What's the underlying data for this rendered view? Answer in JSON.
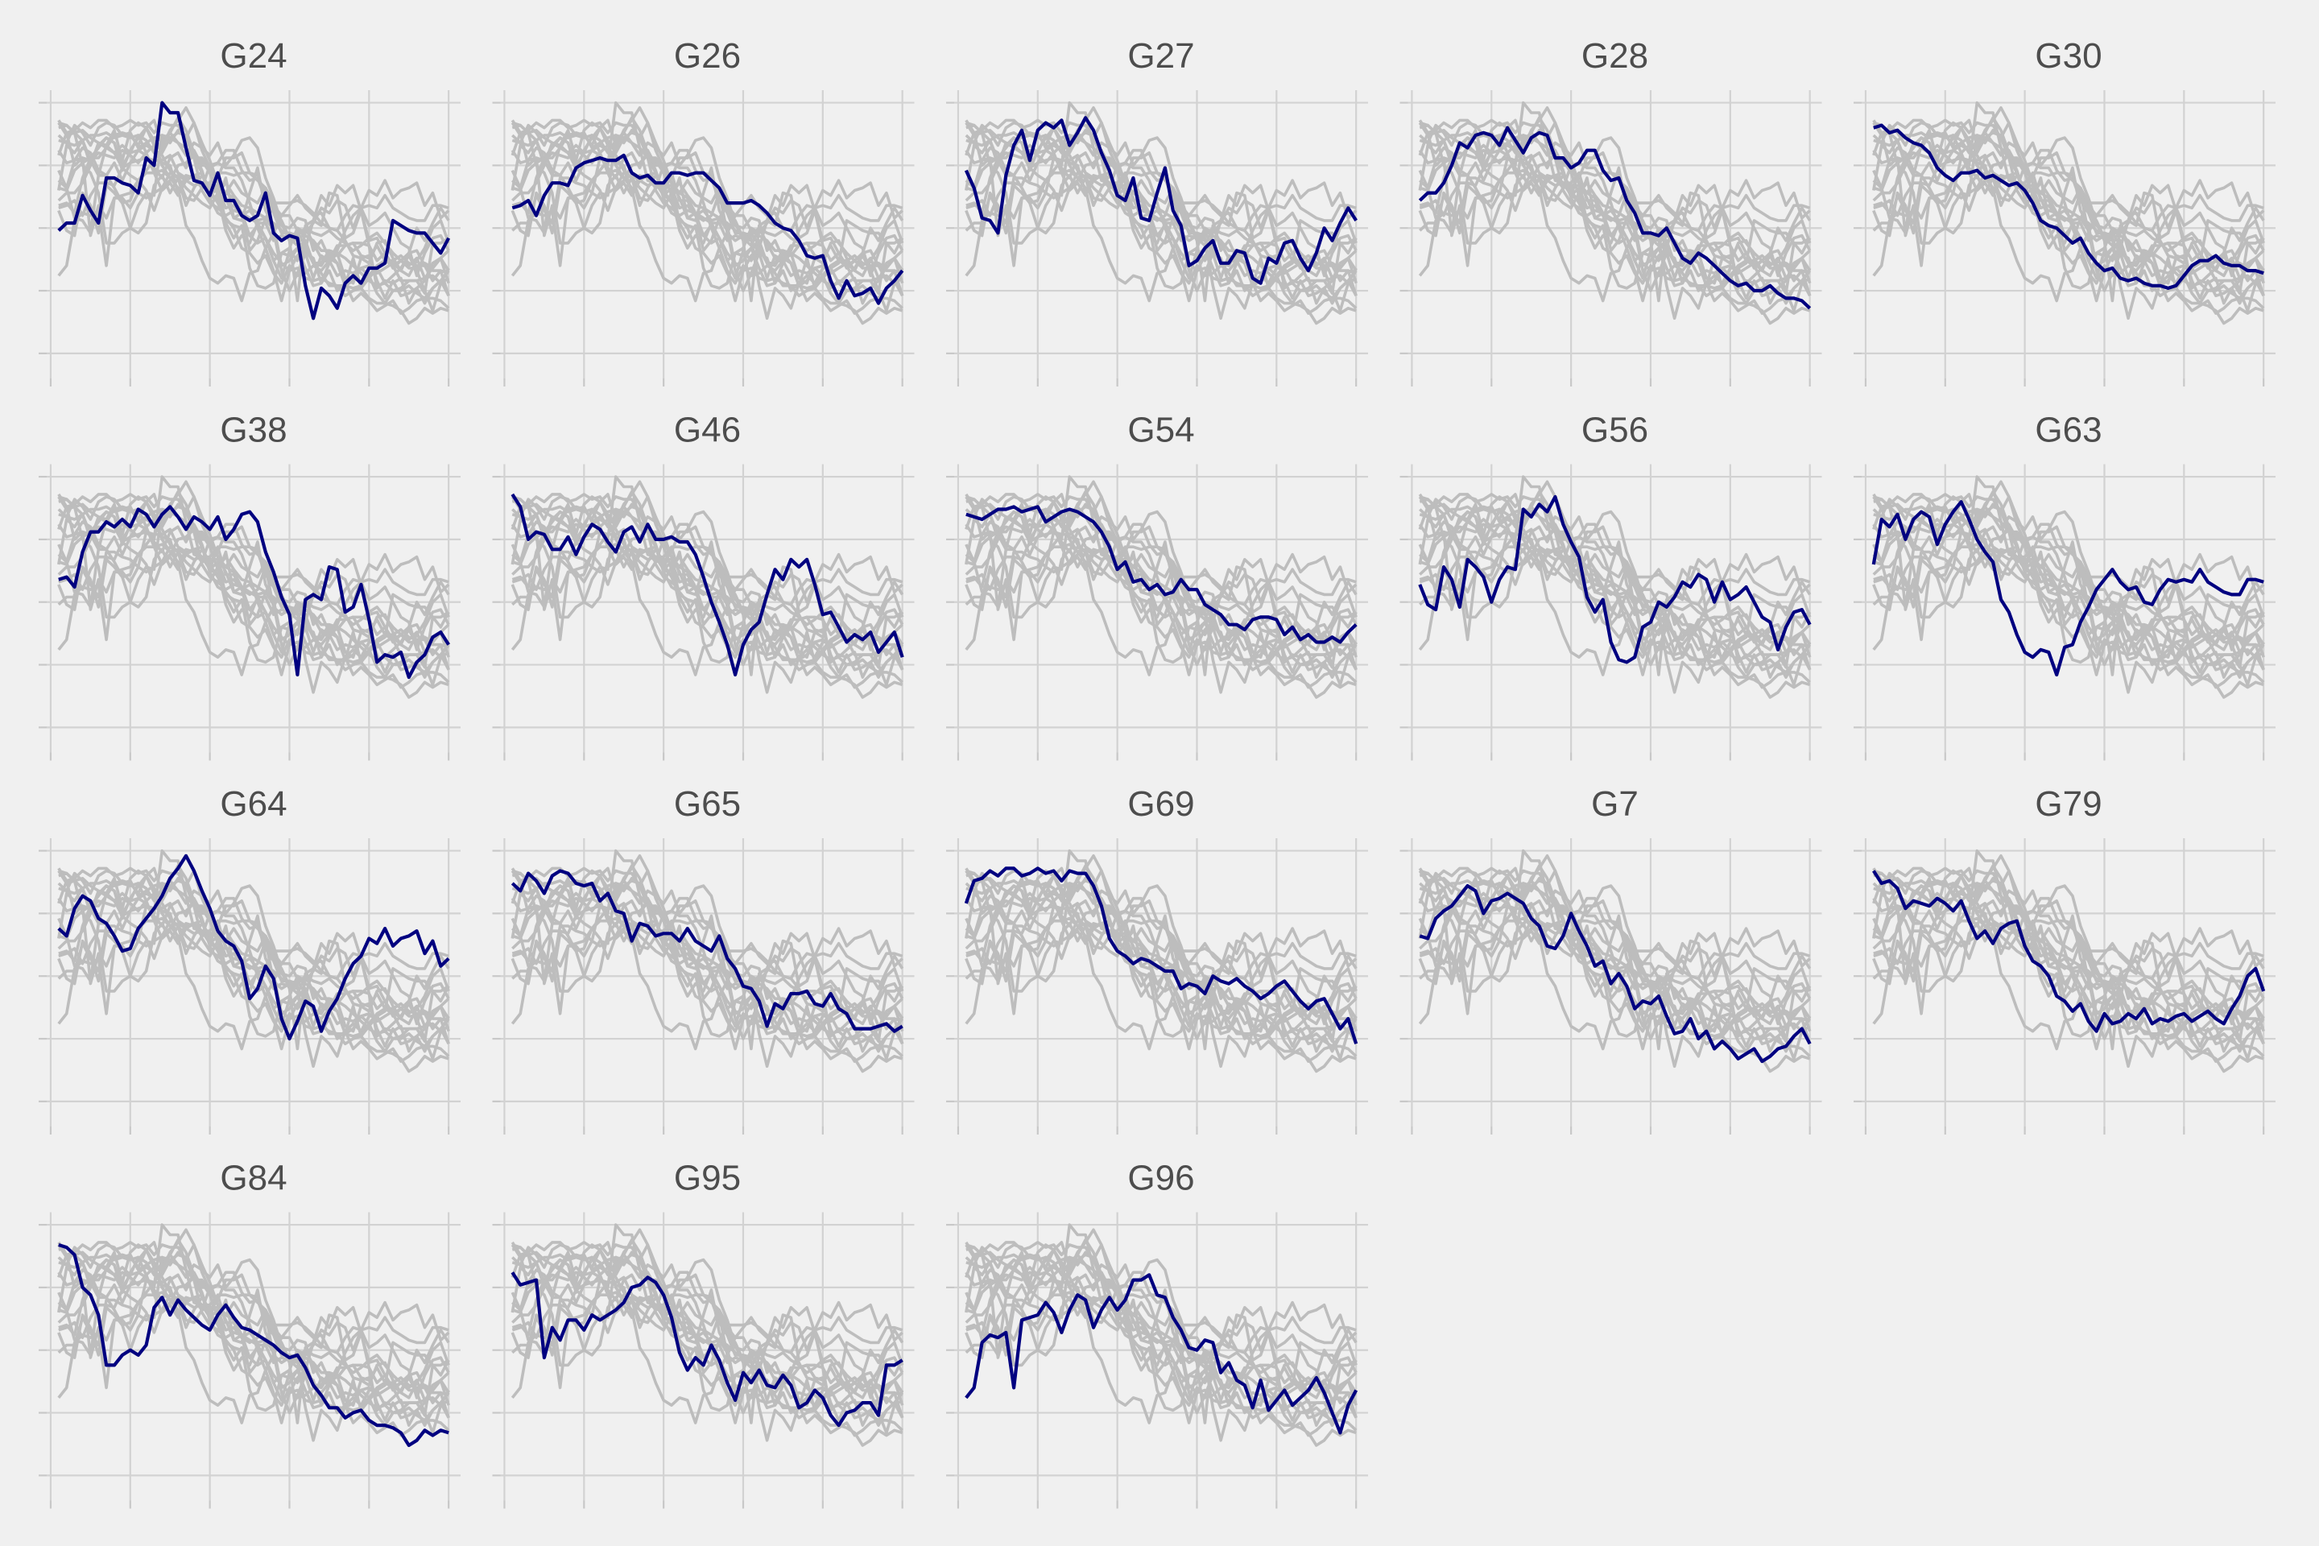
{
  "chart_data": {
    "type": "line",
    "layout": "small-multiples",
    "title": "",
    "xlabel": "",
    "ylabel": "",
    "tick_labels_shown": false,
    "grid": true,
    "x": [
      1,
      2,
      3,
      4,
      5,
      6,
      7,
      8,
      9,
      10,
      11,
      12,
      13,
      14,
      15,
      16,
      17,
      18,
      19,
      20,
      21,
      22,
      23,
      24,
      25,
      26,
      27,
      28,
      29,
      30,
      31,
      32,
      33,
      34,
      35,
      36,
      37,
      38,
      39,
      40,
      41,
      42,
      43,
      44,
      45,
      46,
      47,
      48,
      49,
      50
    ],
    "xlim": [
      -0.5,
      51.5
    ],
    "ylim": [
      -0.1,
      1.05
    ],
    "colors": {
      "highlight": "#000080",
      "background_series": "#bdbdbd",
      "panel_background": "#f0f0f0",
      "grid": "#d2d2d2"
    },
    "panels": [
      {
        "name": "G24",
        "values": [
          0.49,
          0.52,
          0.52,
          0.63,
          0.57,
          0.52,
          0.7,
          0.7,
          0.68,
          0.67,
          0.64,
          0.78,
          0.75,
          1.0,
          0.96,
          0.96,
          0.82,
          0.69,
          0.68,
          0.63,
          0.72,
          0.61,
          0.61,
          0.55,
          0.53,
          0.55,
          0.64,
          0.48,
          0.45,
          0.47,
          0.46,
          0.27,
          0.14,
          0.26,
          0.23,
          0.18,
          0.28,
          0.31,
          0.28,
          0.34,
          0.34,
          0.36,
          0.53,
          0.51,
          0.49,
          0.48,
          0.48,
          0.44,
          0.4,
          0.46
        ]
      },
      {
        "name": "G26",
        "values": [
          0.58,
          0.59,
          0.61,
          0.55,
          0.63,
          0.68,
          0.68,
          0.67,
          0.74,
          0.76,
          0.77,
          0.78,
          0.77,
          0.77,
          0.79,
          0.72,
          0.7,
          0.71,
          0.68,
          0.68,
          0.72,
          0.72,
          0.71,
          0.72,
          0.72,
          0.69,
          0.66,
          0.6,
          0.6,
          0.6,
          0.61,
          0.59,
          0.56,
          0.52,
          0.5,
          0.49,
          0.45,
          0.39,
          0.38,
          0.39,
          0.29,
          0.22,
          0.29,
          0.23,
          0.24,
          0.26,
          0.2,
          0.26,
          0.29,
          0.33
        ]
      },
      {
        "name": "G27",
        "values": [
          0.73,
          0.66,
          0.54,
          0.53,
          0.48,
          0.71,
          0.83,
          0.89,
          0.77,
          0.89,
          0.92,
          0.9,
          0.93,
          0.83,
          0.88,
          0.94,
          0.89,
          0.8,
          0.73,
          0.63,
          0.61,
          0.7,
          0.54,
          0.53,
          0.64,
          0.74,
          0.57,
          0.51,
          0.35,
          0.37,
          0.42,
          0.45,
          0.36,
          0.36,
          0.41,
          0.4,
          0.3,
          0.28,
          0.38,
          0.36,
          0.44,
          0.45,
          0.38,
          0.33,
          0.4,
          0.5,
          0.45,
          0.52,
          0.58,
          0.53
        ]
      },
      {
        "name": "G28",
        "values": [
          0.61,
          0.64,
          0.64,
          0.68,
          0.75,
          0.84,
          0.82,
          0.87,
          0.88,
          0.87,
          0.83,
          0.9,
          0.85,
          0.8,
          0.86,
          0.88,
          0.87,
          0.78,
          0.78,
          0.74,
          0.76,
          0.81,
          0.81,
          0.73,
          0.69,
          0.7,
          0.61,
          0.56,
          0.48,
          0.48,
          0.47,
          0.5,
          0.44,
          0.38,
          0.36,
          0.4,
          0.38,
          0.35,
          0.32,
          0.29,
          0.27,
          0.28,
          0.25,
          0.25,
          0.27,
          0.24,
          0.22,
          0.22,
          0.21,
          0.18
        ]
      },
      {
        "name": "G30",
        "values": [
          0.9,
          0.91,
          0.88,
          0.89,
          0.86,
          0.84,
          0.83,
          0.8,
          0.74,
          0.71,
          0.69,
          0.72,
          0.72,
          0.73,
          0.7,
          0.71,
          0.69,
          0.67,
          0.68,
          0.65,
          0.6,
          0.53,
          0.51,
          0.5,
          0.47,
          0.44,
          0.46,
          0.4,
          0.36,
          0.33,
          0.34,
          0.3,
          0.29,
          0.3,
          0.28,
          0.27,
          0.27,
          0.26,
          0.27,
          0.31,
          0.35,
          0.37,
          0.37,
          0.39,
          0.36,
          0.35,
          0.35,
          0.33,
          0.33,
          0.32
        ]
      },
      {
        "name": "G38",
        "values": [
          0.59,
          0.6,
          0.56,
          0.7,
          0.78,
          0.78,
          0.82,
          0.8,
          0.83,
          0.8,
          0.87,
          0.85,
          0.8,
          0.85,
          0.88,
          0.84,
          0.79,
          0.84,
          0.82,
          0.79,
          0.84,
          0.75,
          0.79,
          0.85,
          0.86,
          0.82,
          0.7,
          0.62,
          0.52,
          0.45,
          0.21,
          0.51,
          0.53,
          0.51,
          0.64,
          0.63,
          0.46,
          0.48,
          0.57,
          0.43,
          0.26,
          0.29,
          0.28,
          0.3,
          0.2,
          0.26,
          0.29,
          0.36,
          0.38,
          0.33
        ]
      },
      {
        "name": "G46",
        "values": [
          0.93,
          0.88,
          0.75,
          0.78,
          0.77,
          0.71,
          0.71,
          0.76,
          0.69,
          0.76,
          0.81,
          0.79,
          0.74,
          0.7,
          0.78,
          0.8,
          0.74,
          0.81,
          0.75,
          0.75,
          0.76,
          0.74,
          0.74,
          0.69,
          0.6,
          0.5,
          0.42,
          0.33,
          0.21,
          0.33,
          0.39,
          0.42,
          0.53,
          0.63,
          0.59,
          0.67,
          0.64,
          0.67,
          0.57,
          0.45,
          0.46,
          0.4,
          0.34,
          0.37,
          0.35,
          0.38,
          0.3,
          0.34,
          0.38,
          0.28
        ]
      },
      {
        "name": "G54",
        "values": [
          0.85,
          0.84,
          0.83,
          0.85,
          0.87,
          0.87,
          0.88,
          0.86,
          0.87,
          0.88,
          0.82,
          0.84,
          0.86,
          0.87,
          0.86,
          0.84,
          0.82,
          0.78,
          0.72,
          0.63,
          0.66,
          0.58,
          0.59,
          0.55,
          0.57,
          0.53,
          0.54,
          0.59,
          0.55,
          0.55,
          0.49,
          0.47,
          0.45,
          0.41,
          0.41,
          0.39,
          0.43,
          0.44,
          0.44,
          0.43,
          0.37,
          0.4,
          0.35,
          0.37,
          0.34,
          0.34,
          0.36,
          0.34,
          0.38,
          0.41
        ]
      },
      {
        "name": "G56",
        "values": [
          0.57,
          0.49,
          0.47,
          0.64,
          0.59,
          0.48,
          0.67,
          0.64,
          0.6,
          0.5,
          0.59,
          0.64,
          0.63,
          0.87,
          0.84,
          0.89,
          0.86,
          0.92,
          0.81,
          0.74,
          0.68,
          0.52,
          0.46,
          0.51,
          0.34,
          0.27,
          0.26,
          0.28,
          0.4,
          0.42,
          0.5,
          0.48,
          0.52,
          0.58,
          0.56,
          0.61,
          0.59,
          0.5,
          0.58,
          0.51,
          0.53,
          0.56,
          0.5,
          0.44,
          0.42,
          0.31,
          0.4,
          0.46,
          0.47,
          0.41
        ]
      },
      {
        "name": "G63",
        "values": [
          0.65,
          0.83,
          0.8,
          0.85,
          0.75,
          0.83,
          0.86,
          0.84,
          0.73,
          0.81,
          0.86,
          0.9,
          0.83,
          0.75,
          0.7,
          0.66,
          0.51,
          0.46,
          0.37,
          0.3,
          0.28,
          0.31,
          0.3,
          0.21,
          0.32,
          0.33,
          0.42,
          0.48,
          0.55,
          0.59,
          0.63,
          0.58,
          0.55,
          0.56,
          0.5,
          0.49,
          0.55,
          0.59,
          0.58,
          0.59,
          0.58,
          0.63,
          0.58,
          0.56,
          0.54,
          0.53,
          0.53,
          0.59,
          0.59,
          0.58
        ]
      },
      {
        "name": "G64",
        "values": [
          0.69,
          0.66,
          0.77,
          0.82,
          0.8,
          0.73,
          0.71,
          0.66,
          0.6,
          0.61,
          0.69,
          0.73,
          0.77,
          0.82,
          0.89,
          0.93,
          0.98,
          0.92,
          0.84,
          0.77,
          0.68,
          0.64,
          0.62,
          0.56,
          0.41,
          0.45,
          0.54,
          0.49,
          0.33,
          0.25,
          0.32,
          0.4,
          0.38,
          0.28,
          0.36,
          0.41,
          0.49,
          0.55,
          0.58,
          0.65,
          0.63,
          0.69,
          0.62,
          0.65,
          0.66,
          0.68,
          0.59,
          0.64,
          0.54,
          0.57
        ]
      },
      {
        "name": "G65",
        "values": [
          0.87,
          0.84,
          0.91,
          0.88,
          0.83,
          0.9,
          0.92,
          0.91,
          0.87,
          0.86,
          0.87,
          0.8,
          0.83,
          0.76,
          0.75,
          0.64,
          0.71,
          0.7,
          0.66,
          0.67,
          0.67,
          0.64,
          0.69,
          0.64,
          0.62,
          0.6,
          0.66,
          0.57,
          0.53,
          0.46,
          0.45,
          0.4,
          0.3,
          0.39,
          0.37,
          0.43,
          0.43,
          0.44,
          0.39,
          0.38,
          0.43,
          0.37,
          0.35,
          0.29,
          0.29,
          0.29,
          0.3,
          0.31,
          0.28,
          0.3
        ]
      },
      {
        "name": "G69",
        "values": [
          0.79,
          0.88,
          0.89,
          0.92,
          0.9,
          0.93,
          0.93,
          0.9,
          0.91,
          0.93,
          0.91,
          0.92,
          0.88,
          0.92,
          0.91,
          0.91,
          0.86,
          0.78,
          0.65,
          0.6,
          0.58,
          0.55,
          0.57,
          0.56,
          0.54,
          0.52,
          0.52,
          0.45,
          0.47,
          0.46,
          0.43,
          0.5,
          0.48,
          0.47,
          0.49,
          0.46,
          0.44,
          0.41,
          0.43,
          0.46,
          0.48,
          0.44,
          0.4,
          0.37,
          0.4,
          0.41,
          0.35,
          0.29,
          0.33,
          0.23
        ]
      },
      {
        "name": "G7",
        "values": [
          0.66,
          0.65,
          0.73,
          0.76,
          0.78,
          0.82,
          0.86,
          0.84,
          0.75,
          0.8,
          0.81,
          0.83,
          0.81,
          0.79,
          0.73,
          0.7,
          0.62,
          0.61,
          0.66,
          0.75,
          0.68,
          0.62,
          0.54,
          0.56,
          0.47,
          0.51,
          0.46,
          0.37,
          0.4,
          0.39,
          0.42,
          0.34,
          0.27,
          0.28,
          0.33,
          0.25,
          0.28,
          0.21,
          0.24,
          0.21,
          0.17,
          0.19,
          0.21,
          0.16,
          0.18,
          0.21,
          0.22,
          0.26,
          0.29,
          0.23
        ]
      },
      {
        "name": "G79",
        "values": [
          0.92,
          0.87,
          0.88,
          0.85,
          0.77,
          0.8,
          0.79,
          0.78,
          0.81,
          0.79,
          0.76,
          0.8,
          0.72,
          0.65,
          0.68,
          0.63,
          0.69,
          0.71,
          0.72,
          0.62,
          0.56,
          0.54,
          0.5,
          0.42,
          0.4,
          0.36,
          0.39,
          0.32,
          0.28,
          0.35,
          0.31,
          0.32,
          0.35,
          0.33,
          0.37,
          0.31,
          0.33,
          0.32,
          0.34,
          0.35,
          0.32,
          0.34,
          0.36,
          0.33,
          0.31,
          0.37,
          0.42,
          0.5,
          0.53,
          0.44
        ]
      },
      {
        "name": "G84",
        "values": [
          0.92,
          0.91,
          0.88,
          0.75,
          0.72,
          0.64,
          0.44,
          0.44,
          0.48,
          0.5,
          0.48,
          0.52,
          0.67,
          0.71,
          0.64,
          0.7,
          0.66,
          0.63,
          0.6,
          0.58,
          0.64,
          0.68,
          0.63,
          0.59,
          0.58,
          0.56,
          0.54,
          0.52,
          0.49,
          0.47,
          0.48,
          0.43,
          0.36,
          0.32,
          0.27,
          0.27,
          0.23,
          0.25,
          0.26,
          0.22,
          0.2,
          0.2,
          0.19,
          0.17,
          0.12,
          0.14,
          0.18,
          0.16,
          0.18,
          0.17
        ]
      },
      {
        "name": "G95",
        "values": [
          0.81,
          0.76,
          0.77,
          0.78,
          0.47,
          0.59,
          0.54,
          0.62,
          0.62,
          0.58,
          0.64,
          0.62,
          0.64,
          0.66,
          0.69,
          0.75,
          0.76,
          0.79,
          0.77,
          0.72,
          0.63,
          0.49,
          0.42,
          0.47,
          0.44,
          0.52,
          0.46,
          0.37,
          0.3,
          0.41,
          0.37,
          0.42,
          0.36,
          0.35,
          0.4,
          0.36,
          0.27,
          0.29,
          0.34,
          0.31,
          0.24,
          0.2,
          0.25,
          0.26,
          0.29,
          0.29,
          0.24,
          0.44,
          0.44,
          0.46
        ]
      },
      {
        "name": "G96",
        "values": [
          0.31,
          0.35,
          0.53,
          0.56,
          0.55,
          0.57,
          0.35,
          0.62,
          0.63,
          0.64,
          0.69,
          0.65,
          0.57,
          0.66,
          0.72,
          0.7,
          0.59,
          0.66,
          0.71,
          0.66,
          0.7,
          0.78,
          0.78,
          0.8,
          0.72,
          0.71,
          0.63,
          0.58,
          0.51,
          0.5,
          0.54,
          0.53,
          0.41,
          0.45,
          0.38,
          0.36,
          0.27,
          0.38,
          0.26,
          0.3,
          0.34,
          0.28,
          0.31,
          0.34,
          0.39,
          0.33,
          0.25,
          0.17,
          0.28,
          0.34
        ]
      }
    ]
  }
}
